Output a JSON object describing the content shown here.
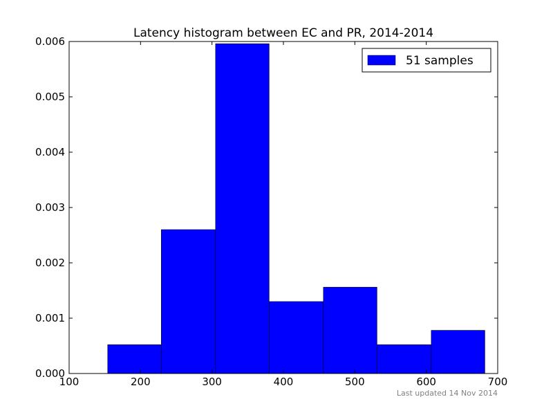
{
  "colors": {
    "bar_fill": "#0000ff",
    "bar_edge": "#000000",
    "axis": "#000000",
    "footer_text": "#808080"
  },
  "footer": {
    "note": "Last updated 14 Nov 2014"
  },
  "chart_data": {
    "type": "bar",
    "title": "Latency histogram between EC and PR, 2014-2014",
    "xlabel": "",
    "ylabel": "",
    "xlim": [
      100,
      700
    ],
    "ylim": [
      0,
      0.006
    ],
    "xticks": [
      100,
      200,
      300,
      400,
      500,
      600,
      700
    ],
    "xtick_labels": [
      "100",
      "200",
      "300",
      "400",
      "500",
      "600",
      "700"
    ],
    "yticks": [
      0.0,
      0.001,
      0.002,
      0.003,
      0.004,
      0.005,
      0.006
    ],
    "ytick_labels": [
      "0.000",
      "0.001",
      "0.002",
      "0.003",
      "0.004",
      "0.005",
      "0.006"
    ],
    "grid": false,
    "legend": {
      "placement": "top-right",
      "entries": [
        "51 samples"
      ]
    },
    "series": [
      {
        "name": "51 samples",
        "bins": [
          {
            "x_start": 154,
            "x_end": 229,
            "value": 0.00052
          },
          {
            "x_start": 229,
            "x_end": 305,
            "value": 0.0026
          },
          {
            "x_start": 305,
            "x_end": 380,
            "value": 0.00596
          },
          {
            "x_start": 380,
            "x_end": 456,
            "value": 0.0013
          },
          {
            "x_start": 456,
            "x_end": 531,
            "value": 0.00156
          },
          {
            "x_start": 531,
            "x_end": 607,
            "value": 0.00052
          },
          {
            "x_start": 607,
            "x_end": 682,
            "value": 0.00078
          }
        ]
      }
    ]
  }
}
